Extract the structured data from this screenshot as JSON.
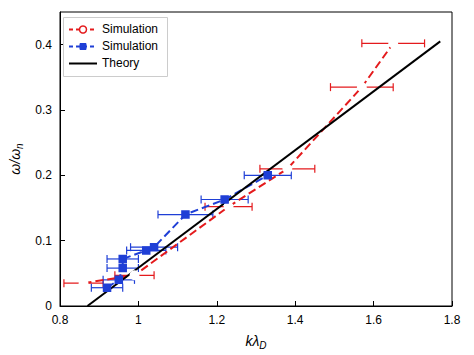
{
  "chart_data": {
    "type": "line",
    "x_label": "kλD",
    "y_label": "ω/ωn",
    "xlim": [
      0.8,
      1.8
    ],
    "xticks": [
      0.8,
      1,
      1.2,
      1.4,
      1.6,
      1.8
    ],
    "ylim": [
      0,
      0.45
    ],
    "yticks": [
      0,
      0.1,
      0.2,
      0.3,
      0.4
    ],
    "grid": false,
    "legend": "upper left",
    "series": [
      {
        "name": "Simulation",
        "color": "#e41a1c",
        "marker": "circle",
        "line_style": "dashed",
        "x": [
          0.86,
          0.99,
          1.23,
          1.38,
          1.57,
          1.65
        ],
        "values": [
          0.035,
          0.047,
          0.152,
          0.21,
          0.335,
          0.402
        ],
        "x_err": [
          0.05,
          0.05,
          0.06,
          0.07,
          0.08,
          0.08
        ]
      },
      {
        "name": "Simulation",
        "color": "#1f3fd6",
        "marker": "square",
        "line_style": "dashed",
        "x": [
          0.92,
          0.95,
          0.96,
          0.96,
          1.02,
          1.04,
          1.12,
          1.22,
          1.33
        ],
        "values": [
          0.028,
          0.04,
          0.058,
          0.072,
          0.085,
          0.09,
          0.14,
          0.163,
          0.2
        ],
        "x_err": [
          0.04,
          0.04,
          0.04,
          0.04,
          0.05,
          0.06,
          0.07,
          0.06,
          0.06
        ]
      },
      {
        "name": "Theory",
        "color": "#000000",
        "marker": "none",
        "line_style": "solid",
        "x": [
          0.87,
          1.77
        ],
        "values": [
          0,
          0.405
        ]
      }
    ]
  }
}
